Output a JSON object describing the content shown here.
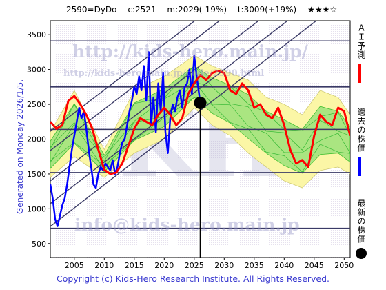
{
  "header": {
    "code": "2590=DyDo",
    "current": "c:2521",
    "m_label": "m:2029(-19%)",
    "t_label": "t:3009(+19%)",
    "stars": "★★★☆"
  },
  "side_text": "Generated on Monday 2026/1/5.",
  "copyright": "Copyright (c) Kids-Hero Research Institute. All Rights Reserved.",
  "watermarks": {
    "url": "http://kids-hero.main.jp/",
    "code_url": "http://kids-hero.main.jp/code/2590.html",
    "email": "info@kids-hero.main.jp",
    "big": "KH"
  },
  "legend": [
    {
      "label": "ＡＩ予測",
      "color": "#ff0000",
      "symbol": "line"
    },
    {
      "label": "過去の株価",
      "color": "#0000ff",
      "symbol": "line"
    },
    {
      "label": "最新の株価",
      "color": "#000000",
      "symbol": "dot"
    }
  ],
  "chart_data": {
    "type": "line",
    "xlim": [
      2001,
      2051
    ],
    "ylim": [
      300,
      3700
    ],
    "x_ticks": [
      2005,
      2010,
      2015,
      2020,
      2025,
      2030,
      2035,
      2040,
      2045,
      2050
    ],
    "y_ticks": [
      500,
      1000,
      1500,
      2000,
      2500,
      3000,
      3500
    ],
    "horizontal_levels": [
      720,
      1520,
      2140,
      2750,
      3410
    ],
    "latest_point": {
      "x": 2026.0,
      "y": 2521
    },
    "series": [
      {
        "name": "過去の株価",
        "color": "#0000ff",
        "x": [
          2001.0,
          2001.4,
          2001.8,
          2002.2,
          2002.6,
          2003.0,
          2003.4,
          2003.8,
          2004.2,
          2004.6,
          2005.0,
          2005.4,
          2005.8,
          2006.2,
          2006.6,
          2007.0,
          2007.4,
          2007.8,
          2008.2,
          2008.6,
          2009.0,
          2009.4,
          2009.8,
          2010.2,
          2010.6,
          2011.0,
          2011.4,
          2011.8,
          2012.2,
          2012.6,
          2013.0,
          2013.4,
          2013.8,
          2014.2,
          2014.6,
          2015.0,
          2015.4,
          2015.8,
          2016.2,
          2016.6,
          2017.0,
          2017.4,
          2017.8,
          2018.2,
          2018.6,
          2019.0,
          2019.4,
          2019.8,
          2020.2,
          2020.6,
          2021.0,
          2021.4,
          2021.8,
          2022.2,
          2022.6,
          2023.0,
          2023.4,
          2023.8,
          2024.2,
          2024.6,
          2025.0,
          2025.4,
          2025.8,
          2026.0
        ],
        "y": [
          1350,
          1150,
          850,
          750,
          900,
          1050,
          1150,
          1350,
          1600,
          1850,
          2050,
          2250,
          2450,
          2300,
          2400,
          2150,
          1850,
          1600,
          1350,
          1300,
          1500,
          1600,
          1550,
          1650,
          1600,
          1550,
          1700,
          1500,
          1600,
          1800,
          1950,
          2000,
          2200,
          2400,
          2550,
          2750,
          2650,
          2900,
          2700,
          3050,
          2550,
          3250,
          2200,
          2600,
          2100,
          2800,
          2400,
          2950,
          2100,
          1800,
          2300,
          2500,
          2400,
          2600,
          2700,
          2450,
          2750,
          2800,
          3000,
          2650,
          3200,
          2900,
          2650,
          2521
        ]
      },
      {
        "name": "ＡＩ予測",
        "color": "#ff0000",
        "x": [
          2001.0,
          2002.0,
          2003.0,
          2004.0,
          2005.0,
          2006.0,
          2007.0,
          2008.0,
          2009.0,
          2010.0,
          2011.0,
          2012.0,
          2013.0,
          2014.0,
          2015.0,
          2016.0,
          2017.0,
          2018.0,
          2019.0,
          2020.0,
          2021.0,
          2022.0,
          2023.0,
          2024.0,
          2025.0,
          2026.0,
          2027.0,
          2028.0,
          2029.0,
          2030.0,
          2031.0,
          2032.0,
          2033.0,
          2034.0,
          2035.0,
          2036.0,
          2037.0,
          2038.0,
          2039.0,
          2040.0,
          2041.0,
          2042.0,
          2043.0,
          2044.0,
          2045.0,
          2046.0,
          2047.0,
          2048.0,
          2049.0,
          2050.0,
          2051.0
        ],
        "y": [
          2250,
          2150,
          2200,
          2550,
          2620,
          2500,
          2350,
          2150,
          1850,
          1560,
          1500,
          1520,
          1650,
          1900,
          2150,
          2300,
          2250,
          2200,
          2350,
          2450,
          2350,
          2200,
          2300,
          2650,
          2800,
          2920,
          2850,
          2950,
          2980,
          2950,
          2700,
          2650,
          2800,
          2700,
          2450,
          2500,
          2350,
          2300,
          2450,
          2200,
          1850,
          1650,
          1700,
          1600,
          2050,
          2350,
          2250,
          2200,
          2450,
          2400,
          2050
        ]
      }
    ],
    "forecast_band": {
      "x": [
        2001.0,
        2005.0,
        2010.0,
        2015.0,
        2020.0,
        2025.0,
        2028.0,
        2031.0,
        2034.0,
        2037.0,
        2040.0,
        2043.0,
        2046.0,
        2049.0,
        2051.0
      ],
      "upper": [
        2100,
        2700,
        1850,
        2700,
        2900,
        3200,
        3050,
        2950,
        2850,
        2600,
        2500,
        2350,
        2700,
        2600,
        2350
      ],
      "lower": [
        1450,
        1750,
        1450,
        1800,
        2000,
        2450,
        2200,
        2050,
        1800,
        1600,
        1400,
        1300,
        1550,
        1600,
        1500
      ]
    }
  }
}
